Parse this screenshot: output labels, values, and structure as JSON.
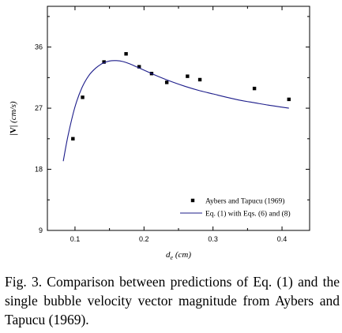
{
  "caption": "Fig. 3. Comparison between predictions of Eq. (1) and the single bubble velocity vector magnitude from Aybers and Tapucu (1969).",
  "chart_data": {
    "type": "scatter",
    "xlabel_main": "d",
    "xlabel_sub": "e",
    "xlabel_units": "(cm)",
    "ylabel_main": "|V|",
    "ylabel_units": "(cm/s)",
    "xlim": [
      0.06,
      0.44
    ],
    "ylim": [
      9,
      42
    ],
    "xticks": [
      "0.1",
      "0.2",
      "0.3",
      "0.4"
    ],
    "xtick_values": [
      0.1,
      0.2,
      0.3,
      0.4
    ],
    "yticks": [
      "9",
      "18",
      "27",
      "36"
    ],
    "ytick_values": [
      9,
      18,
      27,
      36
    ],
    "grid": false,
    "legend_position": "bottom-right",
    "series": [
      {
        "name": "Aybers and Tapucu (1969)",
        "kind": "scatter",
        "color": "#000000",
        "x": [
          0.097,
          0.111,
          0.142,
          0.174,
          0.193,
          0.211,
          0.233,
          0.263,
          0.281,
          0.36,
          0.41
        ],
        "y": [
          22.5,
          28.6,
          33.8,
          35.0,
          33.1,
          32.1,
          30.8,
          31.7,
          31.2,
          29.9,
          28.3
        ]
      },
      {
        "name": "Eq. (1) with Eqs. (6) and (8)",
        "kind": "line",
        "color": "#1c1c8a",
        "x": [
          0.083,
          0.09,
          0.1,
          0.11,
          0.12,
          0.13,
          0.14,
          0.15,
          0.16,
          0.17,
          0.18,
          0.19,
          0.2,
          0.22,
          0.24,
          0.26,
          0.28,
          0.3,
          0.32,
          0.34,
          0.36,
          0.38,
          0.4,
          0.41
        ],
        "y": [
          19.2,
          23.0,
          27.2,
          30.0,
          31.8,
          32.9,
          33.6,
          33.95,
          34.0,
          33.85,
          33.5,
          33.05,
          32.6,
          31.7,
          30.9,
          30.2,
          29.6,
          29.1,
          28.6,
          28.15,
          27.8,
          27.45,
          27.15,
          27.0
        ]
      }
    ]
  }
}
